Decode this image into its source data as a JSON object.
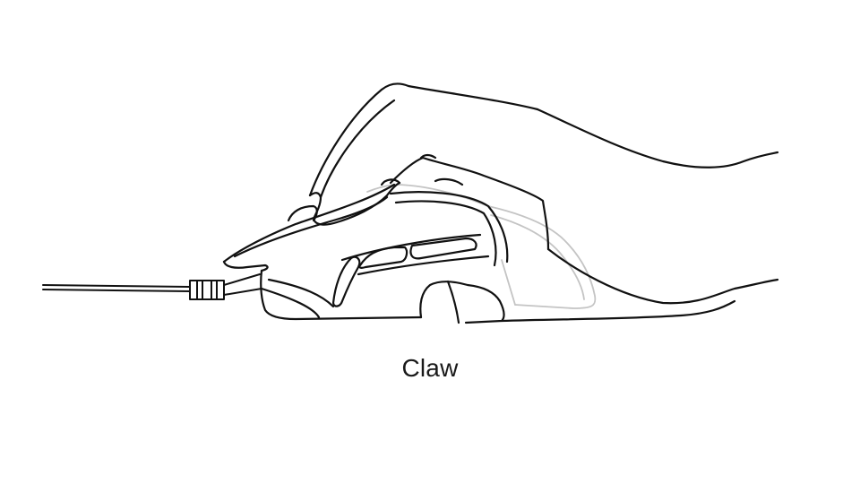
{
  "figure": {
    "caption": "Claw",
    "subject_icon": "hand-claw-grip-on-mouse-icon",
    "colors": {
      "background": "#ffffff",
      "line": "#111111",
      "faint_line": "#bdbdbd"
    }
  }
}
